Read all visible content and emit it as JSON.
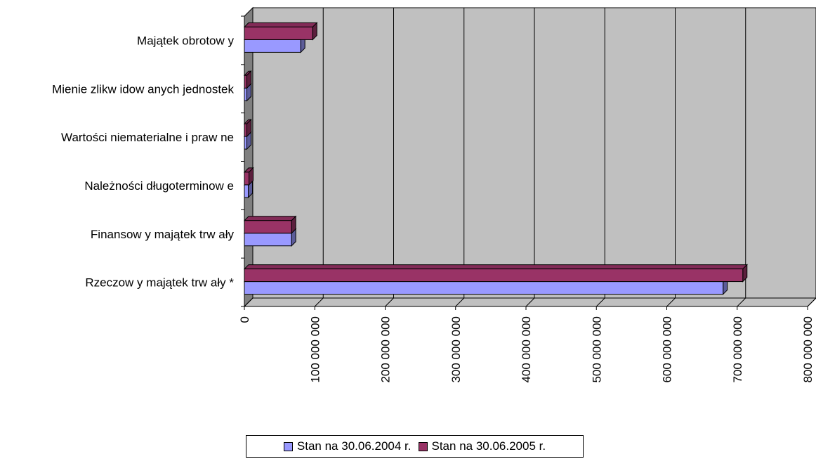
{
  "chart_data": {
    "type": "bar",
    "orientation": "horizontal",
    "three_d": true,
    "categories": [
      "Rzeczow y majątek trw ały *",
      "Finansow y majątek trw ały",
      "Należności długoterminow e",
      "Wartości niematerialne i praw ne",
      "Mienie zlikw idow anych jednostek",
      "Majątek obrotow y"
    ],
    "series": [
      {
        "name": "Stan na 30.06.2004 r.",
        "color": "#9999ff",
        "values": [
          680000000,
          67000000,
          5500000,
          3500000,
          3500000,
          80000000
        ]
      },
      {
        "name": "Stan na 30.06.2005 r.",
        "color": "#993366",
        "values": [
          708000000,
          67000000,
          6500000,
          3500000,
          3500000,
          97000000
        ]
      }
    ],
    "xlim": [
      0,
      800000000
    ],
    "x_ticks": [
      0,
      100000000,
      200000000,
      300000000,
      400000000,
      500000000,
      600000000,
      700000000,
      800000000
    ],
    "x_tick_labels": [
      "0",
      "100 000 000",
      "200 000 000",
      "300 000 000",
      "400 000 000",
      "500 000 000",
      "600 000 000",
      "700 000 000",
      "800 000 000"
    ],
    "grid": true,
    "legend_position": "bottom",
    "plot_wall_color": "#c0c0c0",
    "side_wall_color": "#808080"
  }
}
